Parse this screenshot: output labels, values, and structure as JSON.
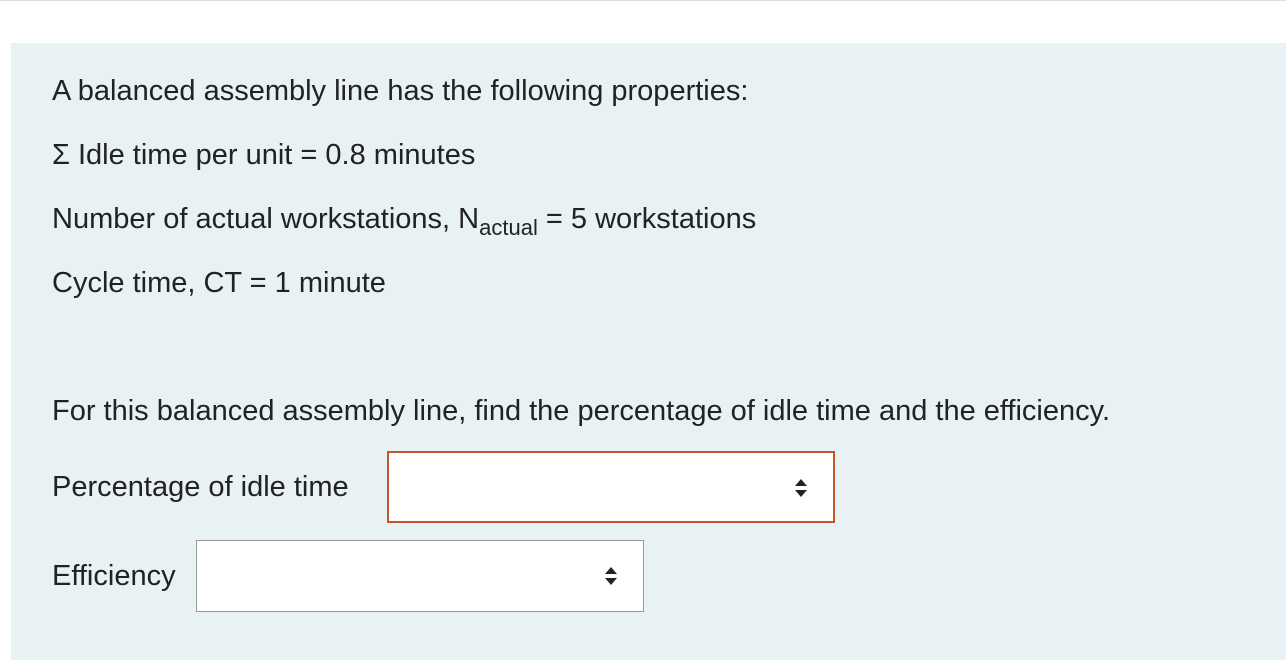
{
  "intro": "A balanced assembly line has the following properties:",
  "idle_time": "Σ Idle time per unit = 0.8 minutes",
  "workstations_pre": "Number of actual workstations, N",
  "workstations_sub": "actual",
  "workstations_post": " = 5 workstations",
  "cycle_time": "Cycle time, CT = 1 minute",
  "question": "For this balanced assembly line, find the percentage of idle time and the efficiency.",
  "fields": [
    {
      "label": "Percentage of idle time",
      "value": ""
    },
    {
      "label": "Efficiency",
      "value": ""
    }
  ],
  "colors": {
    "panel": "#e8f1f4",
    "active_border": "#c0562a"
  }
}
